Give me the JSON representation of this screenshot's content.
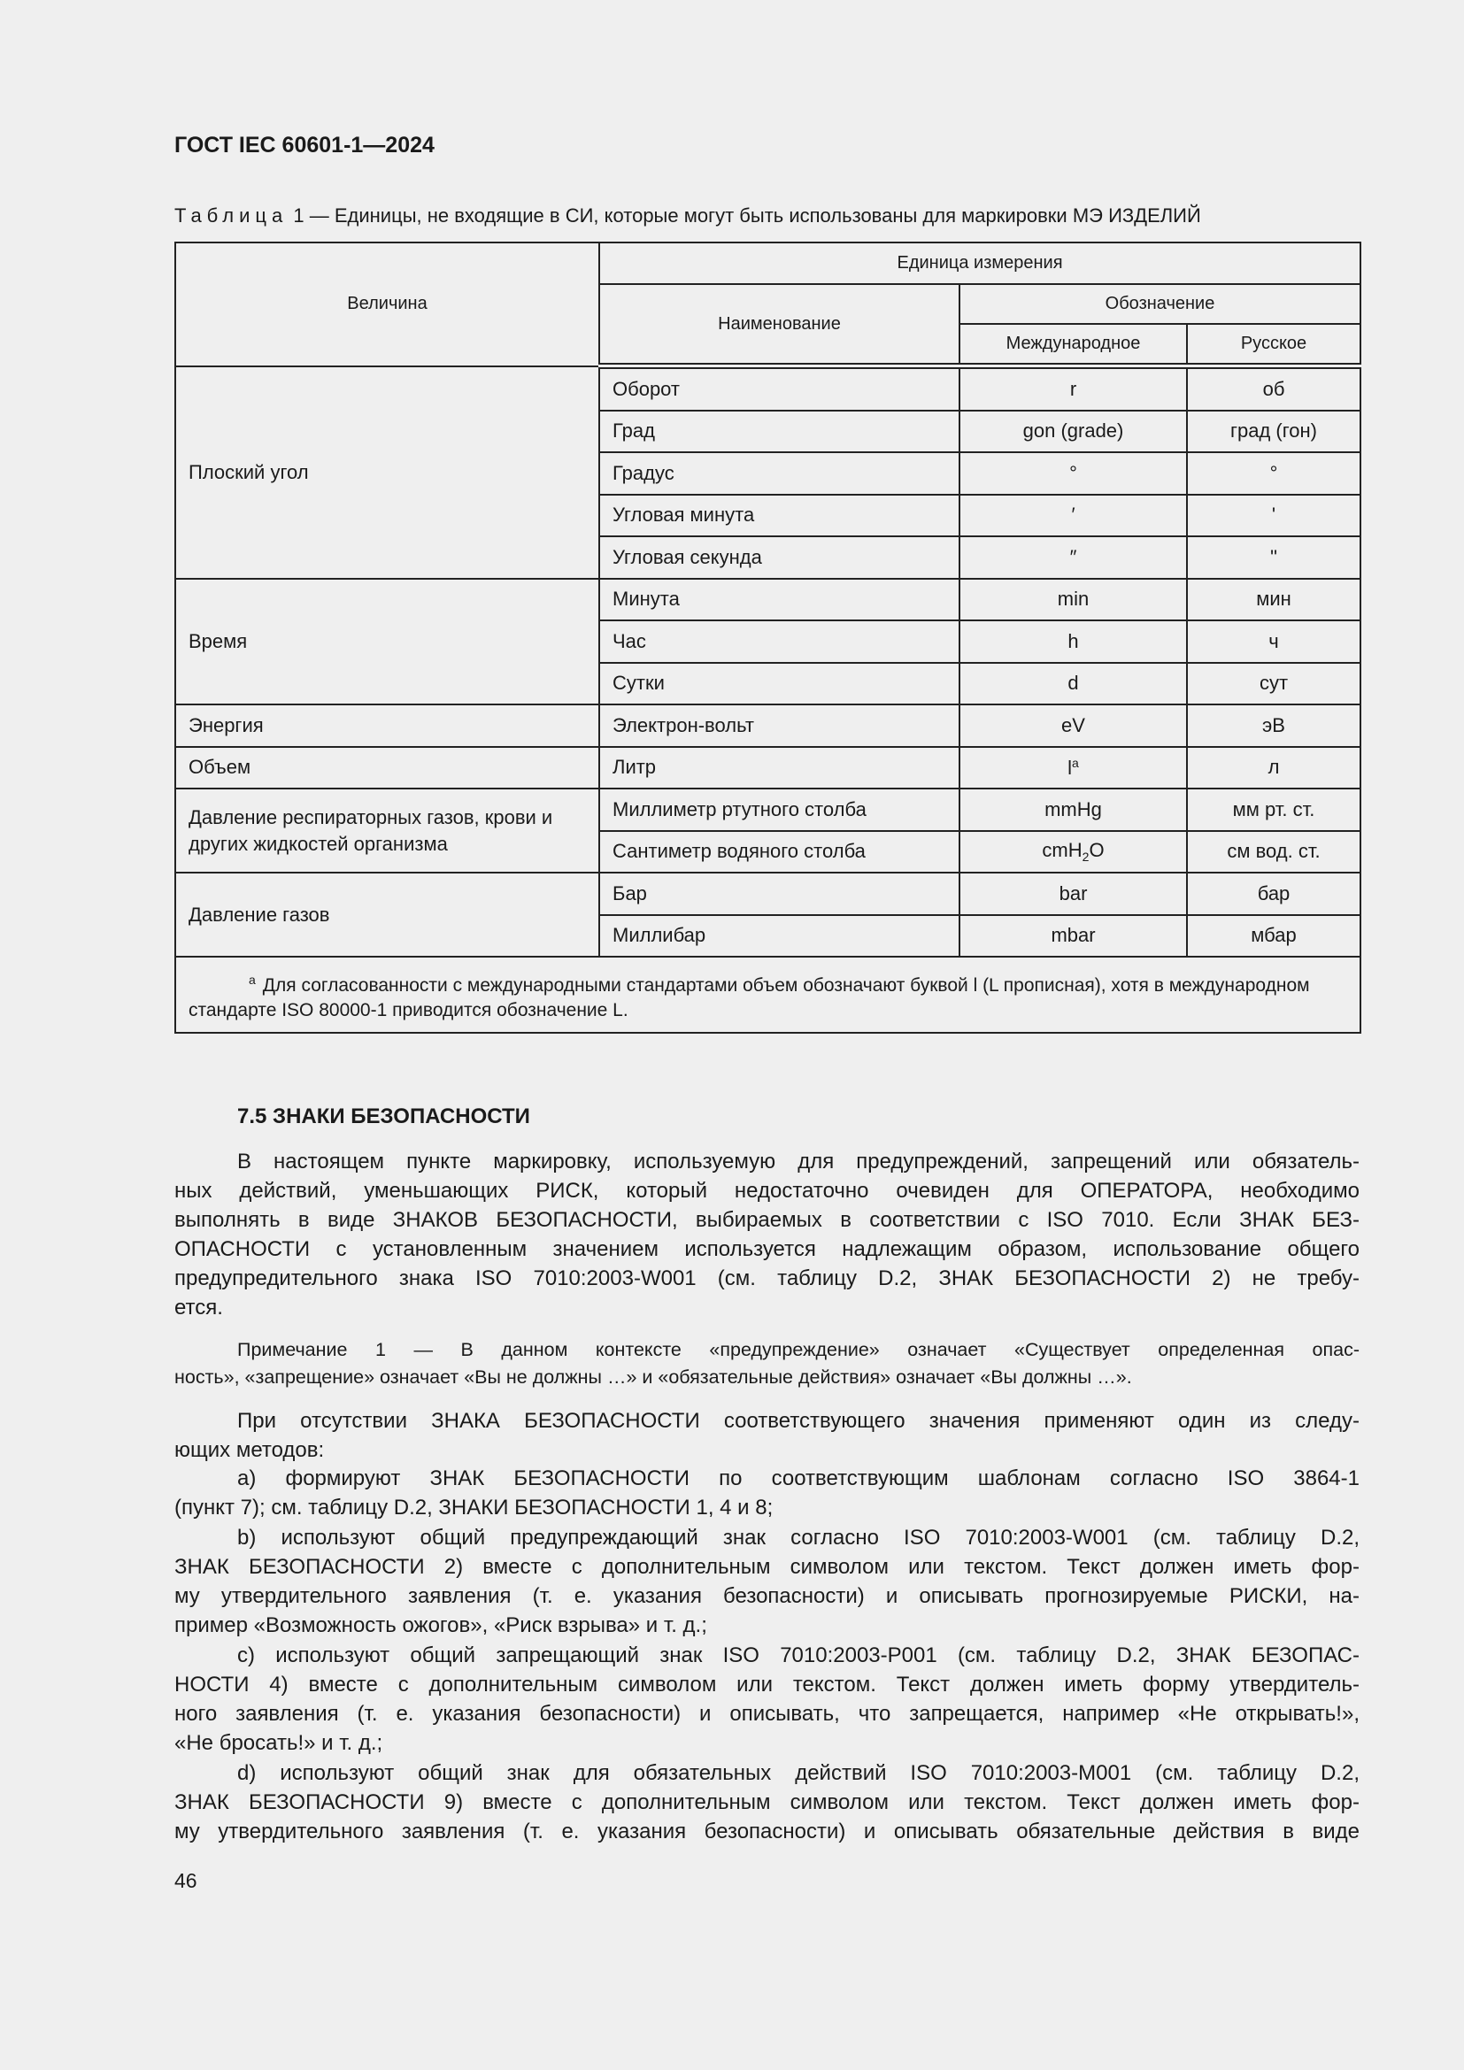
{
  "header": {
    "doc_code": "ГОСТ IEC 60601-1—2024"
  },
  "table": {
    "caption_label": "Таблица",
    "caption_text": "1 — Единицы, не входящие в СИ, которые могут быть использованы для маркировки МЭ ИЗДЕЛИЙ",
    "headers": {
      "quantity": "Величина",
      "unit": "Единица измерения",
      "name": "Наименование",
      "symbol": "Обозначение",
      "international": "Международное",
      "russian": "Русское"
    },
    "groups": [
      {
        "quantity": "Плоский угол",
        "rows": [
          {
            "name": "Оборот",
            "intl": "r",
            "ru": "об"
          },
          {
            "name": "Град",
            "intl": "gon (grade)",
            "ru": "град (гон)"
          },
          {
            "name": "Градус",
            "intl": "°",
            "ru": "°"
          },
          {
            "name": "Угловая минута",
            "intl": "′",
            "ru": "'"
          },
          {
            "name": "Угловая секунда",
            "intl": "″",
            "ru": "\""
          }
        ]
      },
      {
        "quantity": "Время",
        "rows": [
          {
            "name": "Минута",
            "intl": "min",
            "ru": "мин"
          },
          {
            "name": "Час",
            "intl": "h",
            "ru": "ч"
          },
          {
            "name": "Сутки",
            "intl": "d",
            "ru": "сут"
          }
        ]
      },
      {
        "quantity": "Энергия",
        "rows": [
          {
            "name": "Электрон-вольт",
            "intl": "eV",
            "ru": "эВ"
          }
        ]
      },
      {
        "quantity": "Объем",
        "rows": [
          {
            "name": "Литр",
            "intl": "l",
            "intl_sup": "a",
            "ru": "л"
          }
        ]
      },
      {
        "quantity": "Давление респираторных газов, крови и других жидкостей организма",
        "rows": [
          {
            "name": "Миллиметр ртутного столба",
            "intl": "mmHg",
            "ru": "мм рт. ст."
          },
          {
            "name": "Сантиметр водяного столба",
            "intl": "cmH",
            "intl_sub": "2",
            "intl_tail": "O",
            "ru": "см вод. ст."
          }
        ]
      },
      {
        "quantity": "Давление газов",
        "rows": [
          {
            "name": "Бар",
            "intl": "bar",
            "ru": "бар"
          },
          {
            "name": "Миллибар",
            "intl": "mbar",
            "ru": "мбар"
          }
        ]
      }
    ],
    "footnote_mark": "a",
    "footnote": "Для согласованности с международными стандартами объем обозначают буквой l (L прописная), хотя в международном стандарте ISO 80000-1 приводится обозначение L."
  },
  "section": {
    "title": "7.5 ЗНАКИ БЕЗОПАСНОСТИ",
    "paragraphs": [
      [
        "В настоящем пункте маркировку, используемую для предупреждений, запрещений или обязатель-",
        "ных действий, уменьшающих РИСК, который недостаточно очевиден для ОПЕРАТОРА, необходимо",
        "выполнять в виде ЗНАКОВ БЕЗОПАСНОСТИ, выбираемых в соответствии с ISO 7010. Если ЗНАК БЕЗ-",
        "ОПАСНОСТИ с установленным значением используется надлежащим образом, использование общего",
        "предупредительного знака ISO 7010:2003-W001 (см. таблицу D.2, ЗНАК БЕЗОПАСНОСТИ 2) не требу-",
        "ется."
      ],
      [
        "Примечание 1 — В данном контексте «предупреждение» означает «Существует определенная опас-",
        "ность», «запрещение» означает «Вы не должны …» и «обязательные действия» означает «Вы должны …»."
      ],
      [
        "При отсутствии ЗНАКА БЕЗОПАСНОСТИ соответствующего значения применяют один из следу-",
        "ющих методов:"
      ],
      [
        "а) формируют ЗНАК БЕЗОПАСНОСТИ по соответствующим шаблонам согласно ISO 3864-1",
        "(пункт 7); см. таблицу D.2, ЗНАКИ БЕЗОПАСНОСТИ 1, 4 и 8;"
      ],
      [
        "b) используют общий предупреждающий знак согласно ISO 7010:2003-W001 (см. таблицу D.2,",
        "ЗНАК БЕЗОПАСНОСТИ 2) вместе с дополнительным символом или текстом. Текст должен иметь фор-",
        "му утвердительного заявления (т. е. указания безопасности) и описывать прогнозируемые РИСКИ, на-",
        "пример «Возможность ожогов», «Риск взрыва» и т. д.;"
      ],
      [
        "c) используют общий запрещающий знак ISO 7010:2003-P001 (см. таблицу D.2, ЗНАК БЕЗОПАС-",
        "НОСТИ 4) вместе с дополнительным символом или текстом. Текст должен иметь форму утвердитель-",
        "ного заявления (т. е. указания безопасности) и описывать, что запрещается, например «Не открывать!»,",
        "«Не бросать!» и т. д.;"
      ],
      [
        "d) используют общий знак для обязательных действий ISO 7010:2003-M001 (см. таблицу D.2,",
        "ЗНАК БЕЗОПАСНОСТИ 9) вместе с дополнительным символом или текстом. Текст должен иметь фор-",
        "му утвердительного заявления (т. е. указания безопасности) и описывать обязательные действия в виде"
      ]
    ]
  },
  "page_number": "46"
}
